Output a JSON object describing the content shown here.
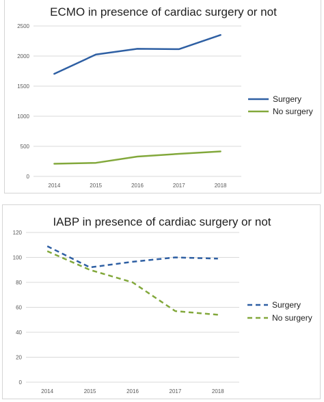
{
  "chart_data": [
    {
      "type": "line",
      "title": "ECMO in presence of cardiac surgery or not",
      "x": [
        "2014",
        "2015",
        "2016",
        "2017",
        "2018"
      ],
      "ylim": [
        0,
        2500
      ],
      "yticks": [
        0,
        500,
        1000,
        1500,
        2000,
        2500
      ],
      "grid": true,
      "legend_position": "right",
      "series": [
        {
          "name": "Surgery",
          "values": [
            1705,
            2025,
            2120,
            2115,
            2350
          ],
          "color": "#2e5fa3",
          "dash": "solid"
        },
        {
          "name": "No surgery",
          "values": [
            210,
            225,
            330,
            375,
            415
          ],
          "color": "#82a83b",
          "dash": "solid"
        }
      ]
    },
    {
      "type": "line",
      "title": "IABP in presence of cardiac surgery or not",
      "x": [
        "2014",
        "2015",
        "2016",
        "2017",
        "2018"
      ],
      "ylim": [
        0,
        120
      ],
      "yticks": [
        0,
        20,
        40,
        60,
        80,
        100,
        120
      ],
      "grid": true,
      "legend_position": "right",
      "series": [
        {
          "name": "Surgery",
          "values": [
            109,
            92,
            96.5,
            100,
            99
          ],
          "color": "#2e5fa3",
          "dash": "dashed"
        },
        {
          "name": "No surgery",
          "values": [
            105,
            90,
            80,
            57,
            54
          ],
          "color": "#82a83b",
          "dash": "dashed"
        }
      ]
    }
  ]
}
